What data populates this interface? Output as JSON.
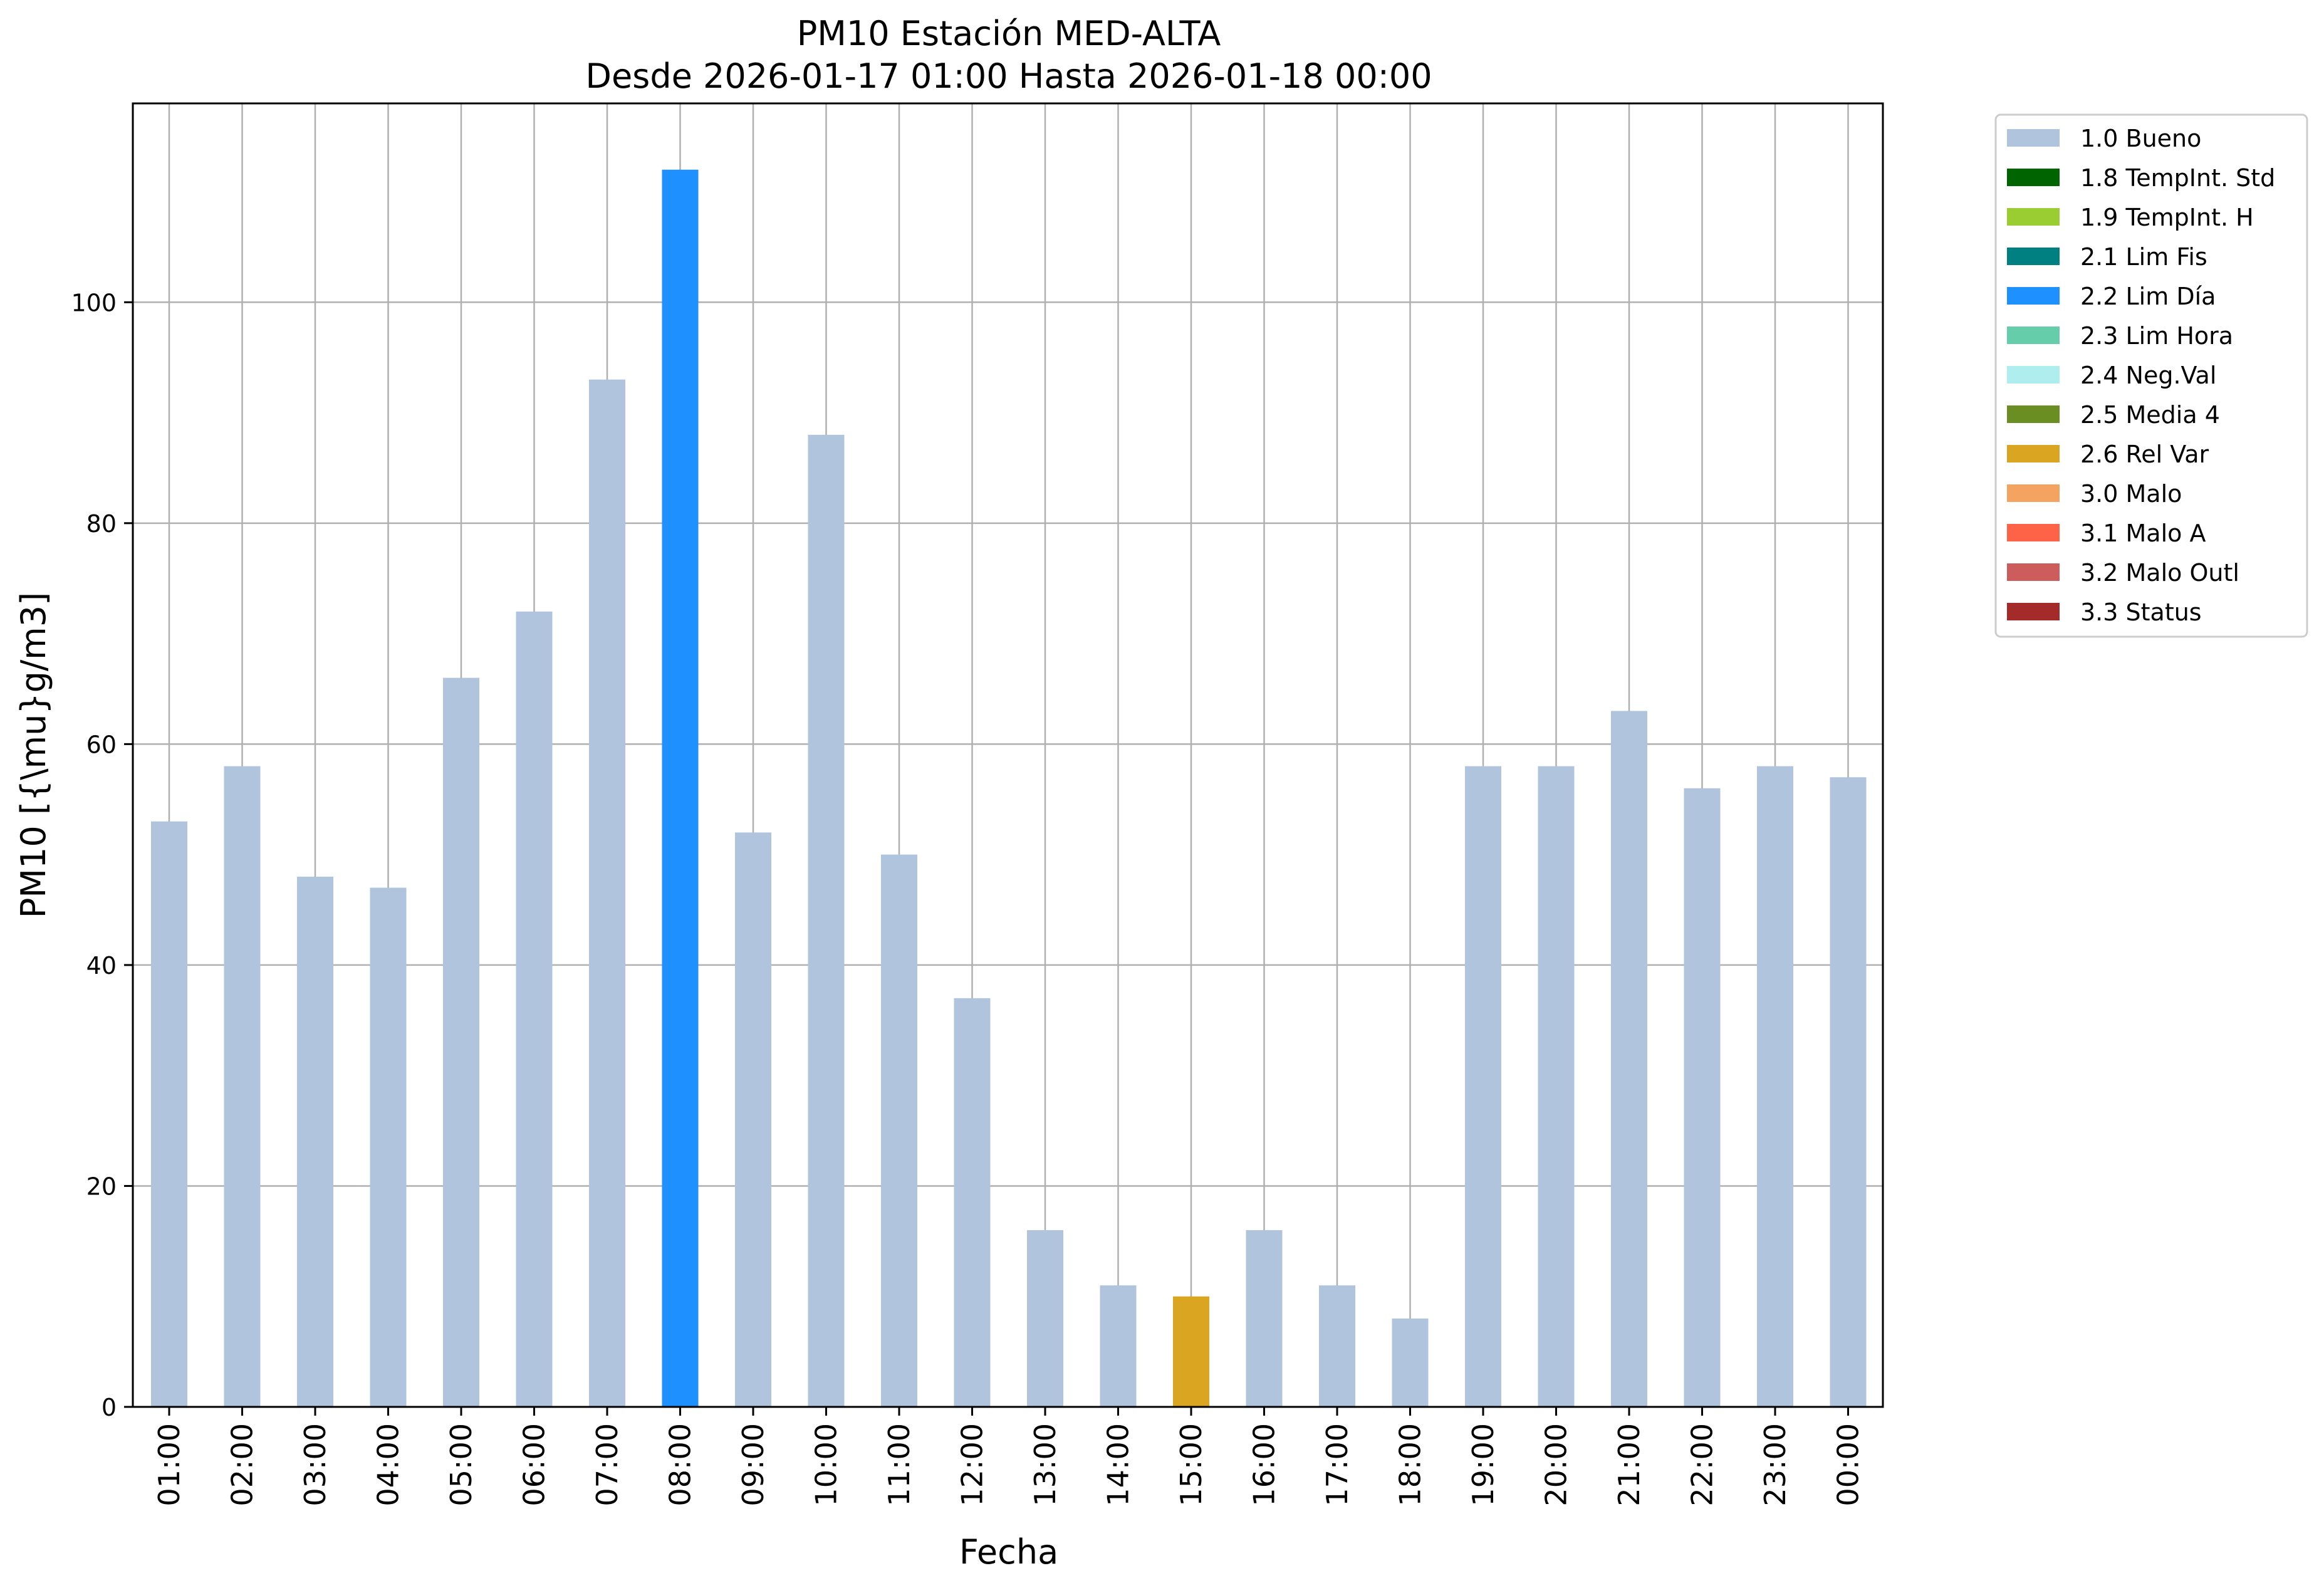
{
  "chart_data": {
    "type": "bar",
    "title": "PM10 Estación MED-ALTA",
    "subtitle": "Desde 2026-01-17 01:00 Hasta 2026-01-18 00:00",
    "xlabel": "Fecha",
    "ylabel": "PM10 [{\\mu}g/m3]",
    "ylim": [
      0,
      118
    ],
    "yticks": [
      0,
      20,
      40,
      60,
      80,
      100
    ],
    "grid": true,
    "legend_position": "outside-top-right",
    "categories": [
      "01:00",
      "02:00",
      "03:00",
      "04:00",
      "05:00",
      "06:00",
      "07:00",
      "08:00",
      "09:00",
      "10:00",
      "11:00",
      "12:00",
      "13:00",
      "14:00",
      "15:00",
      "16:00",
      "17:00",
      "18:00",
      "19:00",
      "20:00",
      "21:00",
      "22:00",
      "23:00",
      "00:00"
    ],
    "values": [
      53,
      58,
      48,
      47,
      66,
      72,
      93,
      112,
      52,
      88,
      50,
      37,
      16,
      11,
      10,
      16,
      11,
      8,
      58,
      58,
      63,
      56,
      58,
      57
    ],
    "flags": [
      "1.0 Bueno",
      "1.0 Bueno",
      "1.0 Bueno",
      "1.0 Bueno",
      "1.0 Bueno",
      "1.0 Bueno",
      "1.0 Bueno",
      "2.2 Lim Día",
      "1.0 Bueno",
      "1.0 Bueno",
      "1.0 Bueno",
      "1.0 Bueno",
      "1.0 Bueno",
      "1.0 Bueno",
      "2.6 Rel Var",
      "1.0 Bueno",
      "1.0 Bueno",
      "1.0 Bueno",
      "1.0 Bueno",
      "1.0 Bueno",
      "1.0 Bueno",
      "1.0 Bueno",
      "1.0 Bueno",
      "1.0 Bueno"
    ],
    "legend": [
      {
        "label": "1.0 Bueno",
        "color": "#b0c4de"
      },
      {
        "label": "1.8 TempInt. Std",
        "color": "#006400"
      },
      {
        "label": "1.9 TempInt. H",
        "color": "#9acd32"
      },
      {
        "label": "2.1 Lim Fis",
        "color": "#008080"
      },
      {
        "label": "2.2 Lim Día",
        "color": "#1e90ff"
      },
      {
        "label": "2.3 Lim Hora",
        "color": "#66cdaa"
      },
      {
        "label": "2.4 Neg.Val",
        "color": "#afeeee"
      },
      {
        "label": "2.5 Media 4",
        "color": "#6b8e23"
      },
      {
        "label": "2.6 Rel Var",
        "color": "#daa520"
      },
      {
        "label": "3.0 Malo",
        "color": "#f4a460"
      },
      {
        "label": "3.1 Malo A",
        "color": "#ff6347"
      },
      {
        "label": "3.2 Malo Outl",
        "color": "#cd5c5c"
      },
      {
        "label": "3.3 Status",
        "color": "#a52a2a"
      }
    ]
  }
}
